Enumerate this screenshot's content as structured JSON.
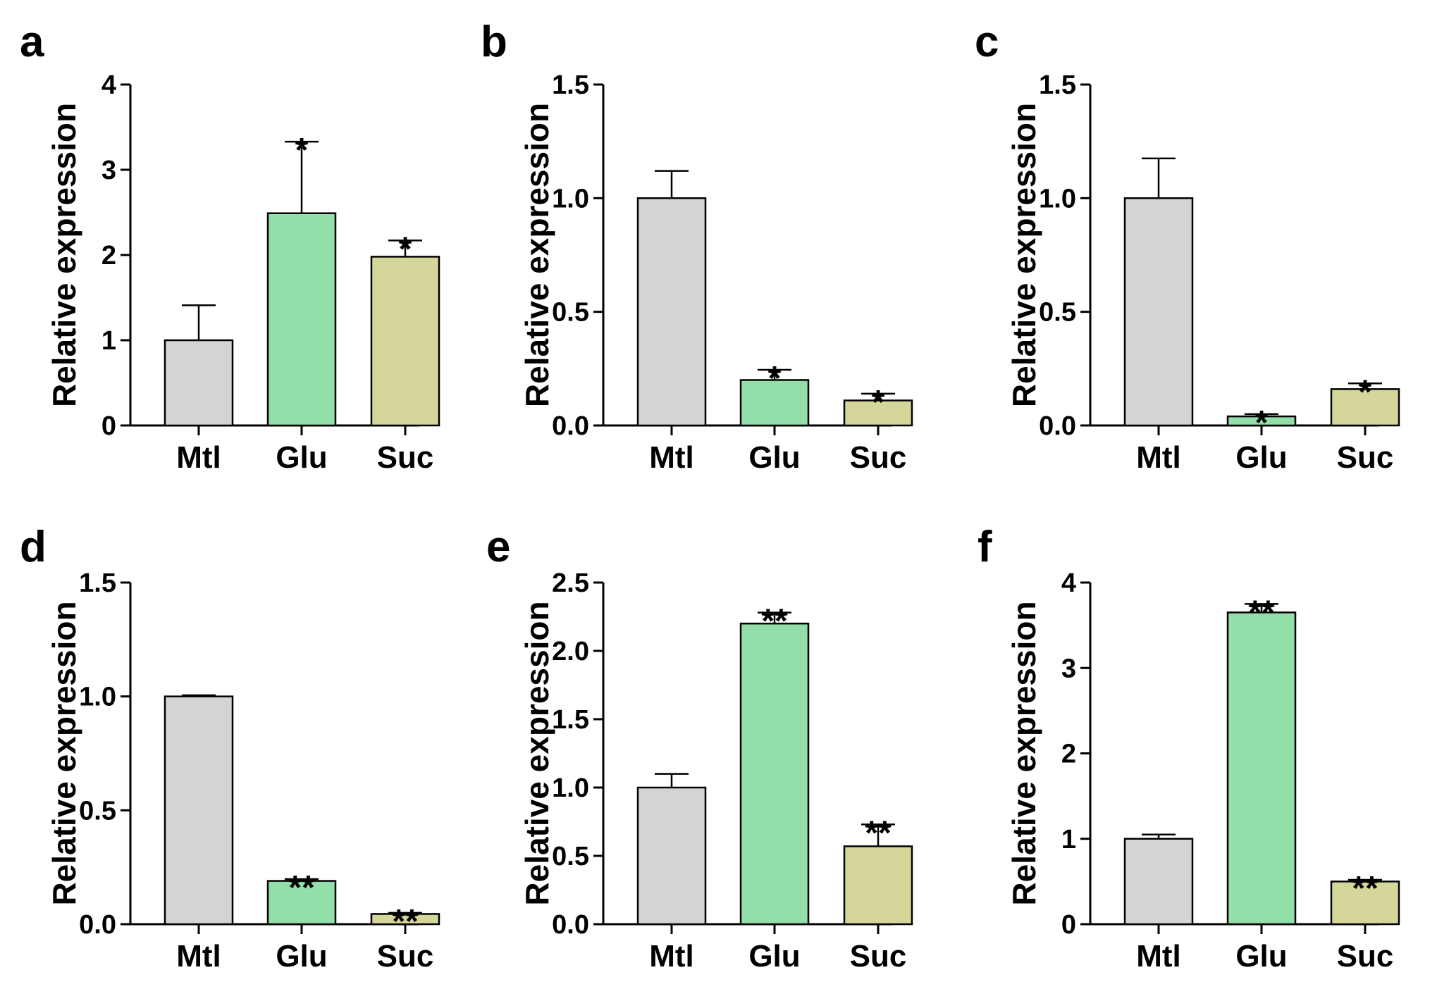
{
  "figure": {
    "description_colors": {
      "Mtl": "#d4d4d4",
      "Glu": "#93dfa9",
      "Suc": "#d5d79a",
      "stroke": "#000000"
    }
  },
  "chart_data": [
    {
      "panel": "a",
      "type": "bar",
      "categories": [
        "Mtl",
        "Glu",
        "Suc"
      ],
      "values": [
        1.0,
        2.49,
        1.98
      ],
      "errors": [
        0.41,
        0.84,
        0.19
      ],
      "significance": [
        "",
        "*",
        "*"
      ],
      "ylabel": "Relative expression",
      "ylim": [
        0,
        4
      ],
      "yticks": [
        0,
        1,
        2,
        3,
        4
      ],
      "ytick_labels": [
        "0",
        "1",
        "2",
        "3",
        "4"
      ]
    },
    {
      "panel": "b",
      "type": "bar",
      "categories": [
        "Mtl",
        "Glu",
        "Suc"
      ],
      "values": [
        1.0,
        0.2,
        0.11
      ],
      "errors": [
        0.12,
        0.045,
        0.03
      ],
      "significance": [
        "",
        "*",
        "*"
      ],
      "ylabel": "Relative expression",
      "ylim": [
        0,
        1.5
      ],
      "yticks": [
        0,
        0.5,
        1.0,
        1.5
      ],
      "ytick_labels": [
        "0.0",
        "0.5",
        "1.0",
        "1.5"
      ]
    },
    {
      "panel": "c",
      "type": "bar",
      "categories": [
        "Mtl",
        "Glu",
        "Suc"
      ],
      "values": [
        1.0,
        0.04,
        0.16
      ],
      "errors": [
        0.175,
        0.01,
        0.025
      ],
      "significance": [
        "",
        "*",
        "*"
      ],
      "ylabel": "Relative expression",
      "ylim": [
        0,
        1.5
      ],
      "yticks": [
        0,
        0.5,
        1.0,
        1.5
      ],
      "ytick_labels": [
        "0.0",
        "0.5",
        "1.0",
        "1.5"
      ]
    },
    {
      "panel": "d",
      "type": "bar",
      "categories": [
        "Mtl",
        "Glu",
        "Suc"
      ],
      "values": [
        1.0,
        0.19,
        0.045
      ],
      "errors": [
        0.005,
        0.008,
        0.005
      ],
      "significance": [
        "",
        "**",
        "**"
      ],
      "ylabel": "Relative expression",
      "ylim": [
        0,
        1.5
      ],
      "yticks": [
        0,
        0.5,
        1.0,
        1.5
      ],
      "ytick_labels": [
        "0.0",
        "0.5",
        "1.0",
        "1.5"
      ]
    },
    {
      "panel": "e",
      "type": "bar",
      "categories": [
        "Mtl",
        "Glu",
        "Suc"
      ],
      "values": [
        1.0,
        2.2,
        0.57
      ],
      "errors": [
        0.1,
        0.08,
        0.16
      ],
      "significance": [
        "",
        "**",
        "**"
      ],
      "ylabel": "Relative expression",
      "ylim": [
        0,
        2.5
      ],
      "yticks": [
        0,
        0.5,
        1.0,
        1.5,
        2.0,
        2.5
      ],
      "ytick_labels": [
        "0.0",
        "0.5",
        "1.0",
        "1.5",
        "2.0",
        "2.5"
      ]
    },
    {
      "panel": "f",
      "type": "bar",
      "categories": [
        "Mtl",
        "Glu",
        "Suc"
      ],
      "values": [
        1.0,
        3.65,
        0.5
      ],
      "errors": [
        0.05,
        0.1,
        0.02
      ],
      "significance": [
        "",
        "**",
        "**"
      ],
      "ylabel": "Relative expression",
      "ylim": [
        0,
        4
      ],
      "yticks": [
        0,
        1,
        2,
        3,
        4
      ],
      "ytick_labels": [
        "0",
        "1",
        "2",
        "3",
        "4"
      ]
    }
  ]
}
